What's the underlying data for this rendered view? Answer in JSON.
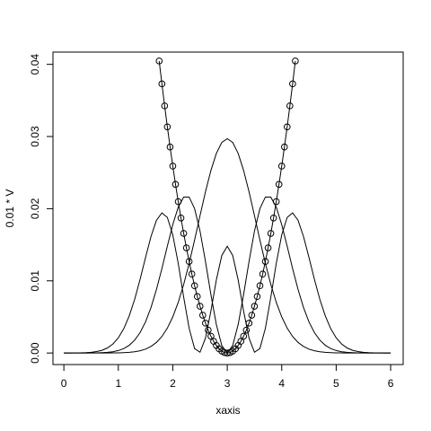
{
  "chart_data": {
    "type": "line",
    "x_label": "xaxis",
    "y_label": "0.01 * V",
    "xlim": [
      -0.2,
      6.23
    ],
    "ylim": [
      -0.0016,
      0.0417
    ],
    "xticks": [
      0,
      1,
      2,
      3,
      4,
      5,
      6
    ],
    "yticks": [
      {
        "value": 0,
        "label": "0.00"
      },
      {
        "value": 0.01,
        "label": "0.01"
      },
      {
        "value": 0.02,
        "label": "0.02"
      },
      {
        "value": 0.03,
        "label": "0.03"
      },
      {
        "value": 0.04,
        "label": "0.04"
      }
    ],
    "series": [
      {
        "color": "#000000",
        "markers": false,
        "x": [
          0,
          0.1,
          0.2,
          0.3,
          0.4,
          0.5,
          0.6,
          0.7,
          0.8,
          0.9,
          1,
          1.1,
          1.2,
          1.3,
          1.4,
          1.5,
          1.6,
          1.7,
          1.8,
          1.9,
          2,
          2.1,
          2.2,
          2.3,
          2.4,
          2.5,
          2.6,
          2.7,
          2.8,
          2.9,
          3,
          3.1,
          3.2,
          3.3,
          3.4,
          3.5,
          3.6,
          3.7,
          3.8,
          3.9,
          4,
          4.1,
          4.2,
          4.3,
          4.4,
          4.5,
          4.6,
          4.7,
          4.8,
          4.9,
          5,
          5.1,
          5.2,
          5.3,
          5.4,
          5.5,
          5.6,
          5.7,
          5.8,
          5.9,
          6
        ],
        "values": [
          0,
          0,
          0,
          0,
          0,
          0,
          0,
          0,
          0,
          1e-05,
          2e-05,
          5e-05,
          9e-05,
          0.00017,
          0.00031,
          0.00054,
          0.00091,
          0.00147,
          0.00229,
          0.00345,
          0.00501,
          0.00702,
          0.00951,
          0.01242,
          0.01565,
          0.01903,
          0.02234,
          0.0253,
          0.02766,
          0.02918,
          0.0297,
          0.02918,
          0.02766,
          0.0253,
          0.02234,
          0.01903,
          0.01565,
          0.01242,
          0.00951,
          0.00702,
          0.00501,
          0.00345,
          0.00229,
          0.00147,
          0.00091,
          0.00054,
          0.00031,
          0.00017,
          9e-05,
          5e-05,
          2e-05,
          1e-05,
          0,
          0,
          0,
          0,
          0,
          0,
          0,
          0,
          0
        ]
      },
      {
        "color": "#000000",
        "markers": false,
        "x": [
          0,
          0.1,
          0.2,
          0.3,
          0.4,
          0.5,
          0.6,
          0.7,
          0.8,
          0.9,
          1,
          1.1,
          1.2,
          1.3,
          1.4,
          1.5,
          1.6,
          1.7,
          1.8,
          1.9,
          2,
          2.1,
          2.2,
          2.3,
          2.4,
          2.5,
          2.6,
          2.7,
          2.8,
          2.9,
          3,
          3.1,
          3.2,
          3.3,
          3.4,
          3.5,
          3.6,
          3.7,
          3.8,
          3.9,
          4,
          4.1,
          4.2,
          4.3,
          4.4,
          4.5,
          4.6,
          4.7,
          4.8,
          4.9,
          5,
          5.1,
          5.2,
          5.3,
          5.4,
          5.5,
          5.6,
          5.7,
          5.8,
          5.9,
          6
        ],
        "values": [
          0,
          0,
          0,
          0,
          0,
          1e-05,
          2e-05,
          5e-05,
          9e-05,
          0.00018,
          0.00034,
          0.00062,
          0.00107,
          0.00178,
          0.00283,
          0.00432,
          0.00631,
          0.0088,
          0.0117,
          0.01481,
          0.01779,
          0.02021,
          0.02161,
          0.02161,
          0.02001,
          0.0169,
          0.01269,
          0.00809,
          0.00393,
          0.00104,
          0,
          0.00104,
          0.00393,
          0.00809,
          0.01269,
          0.0169,
          0.02001,
          0.02161,
          0.02161,
          0.02021,
          0.01779,
          0.01481,
          0.0117,
          0.0088,
          0.00631,
          0.00432,
          0.00283,
          0.00178,
          0.00107,
          0.00062,
          0.00034,
          0.00018,
          9e-05,
          5e-05,
          2e-05,
          1e-05,
          0,
          0,
          0,
          0,
          0
        ]
      },
      {
        "color": "#000000",
        "markers": false,
        "x": [
          0,
          0.1,
          0.2,
          0.3,
          0.4,
          0.5,
          0.6,
          0.7,
          0.8,
          0.9,
          1,
          1.1,
          1.2,
          1.3,
          1.4,
          1.5,
          1.6,
          1.7,
          1.8,
          1.9,
          2,
          2.1,
          2.2,
          2.3,
          2.4,
          2.5,
          2.6,
          2.7,
          2.8,
          2.9,
          3,
          3.1,
          3.2,
          3.3,
          3.4,
          3.5,
          3.6,
          3.7,
          3.8,
          3.9,
          4,
          4.1,
          4.2,
          4.3,
          4.4,
          4.5,
          4.6,
          4.7,
          4.8,
          4.9,
          5,
          5.1,
          5.2,
          5.3,
          5.4,
          5.5,
          5.6,
          5.7,
          5.8,
          5.9,
          6
        ],
        "values": [
          0,
          0,
          1e-05,
          2e-05,
          5e-05,
          0.0001,
          0.0002,
          0.00038,
          0.0007,
          0.00125,
          0.0021,
          0.00337,
          0.00514,
          0.00744,
          0.01022,
          0.01325,
          0.01615,
          0.01839,
          0.01942,
          0.01879,
          0.01636,
          0.01242,
          0.00774,
          0.00343,
          0.00062,
          0.00011,
          0.00206,
          0.00582,
          0.01014,
          0.01352,
          0.0148,
          0.01352,
          0.01014,
          0.00582,
          0.00206,
          0.00011,
          0.00062,
          0.00343,
          0.00774,
          0.01242,
          0.01636,
          0.01879,
          0.01942,
          0.01839,
          0.01615,
          0.01325,
          0.01022,
          0.00744,
          0.00514,
          0.00337,
          0.0021,
          0.00125,
          0.0007,
          0.00038,
          0.0002,
          0.0001,
          5e-05,
          2e-05,
          1e-05,
          0,
          0
        ]
      },
      {
        "color": "#000000",
        "markers": true,
        "x": [
          1.75,
          1.8,
          1.85,
          1.9,
          1.95,
          2,
          2.05,
          2.1,
          2.15,
          2.2,
          2.25,
          2.3,
          2.35,
          2.4,
          2.45,
          2.5,
          2.55,
          2.6,
          2.65,
          2.7,
          2.75,
          2.8,
          2.85,
          2.9,
          2.95,
          3,
          3.05,
          3.1,
          3.15,
          3.2,
          3.25,
          3.3,
          3.35,
          3.4,
          3.45,
          3.5,
          3.55,
          3.6,
          3.65,
          3.7,
          3.75,
          3.8,
          3.85,
          3.9,
          3.95,
          4,
          4.05,
          4.1,
          4.15,
          4.2,
          4.25
        ],
        "values": [
          0.04047,
          0.0373,
          0.03425,
          0.03134,
          0.02855,
          0.0259,
          0.02337,
          0.02098,
          0.01871,
          0.01658,
          0.01457,
          0.01269,
          0.01094,
          0.00932,
          0.00783,
          0.00648,
          0.00524,
          0.00414,
          0.00317,
          0.00233,
          0.00162,
          0.00104,
          0.00058,
          0.00026,
          6e-05,
          0,
          6e-05,
          0.00026,
          0.00058,
          0.00104,
          0.00162,
          0.00233,
          0.00317,
          0.00414,
          0.00524,
          0.00648,
          0.00783,
          0.00932,
          0.01094,
          0.01269,
          0.01457,
          0.01658,
          0.01871,
          0.02098,
          0.02337,
          0.0259,
          0.02855,
          0.03134,
          0.03425,
          0.0373,
          0.04047
        ]
      }
    ]
  }
}
